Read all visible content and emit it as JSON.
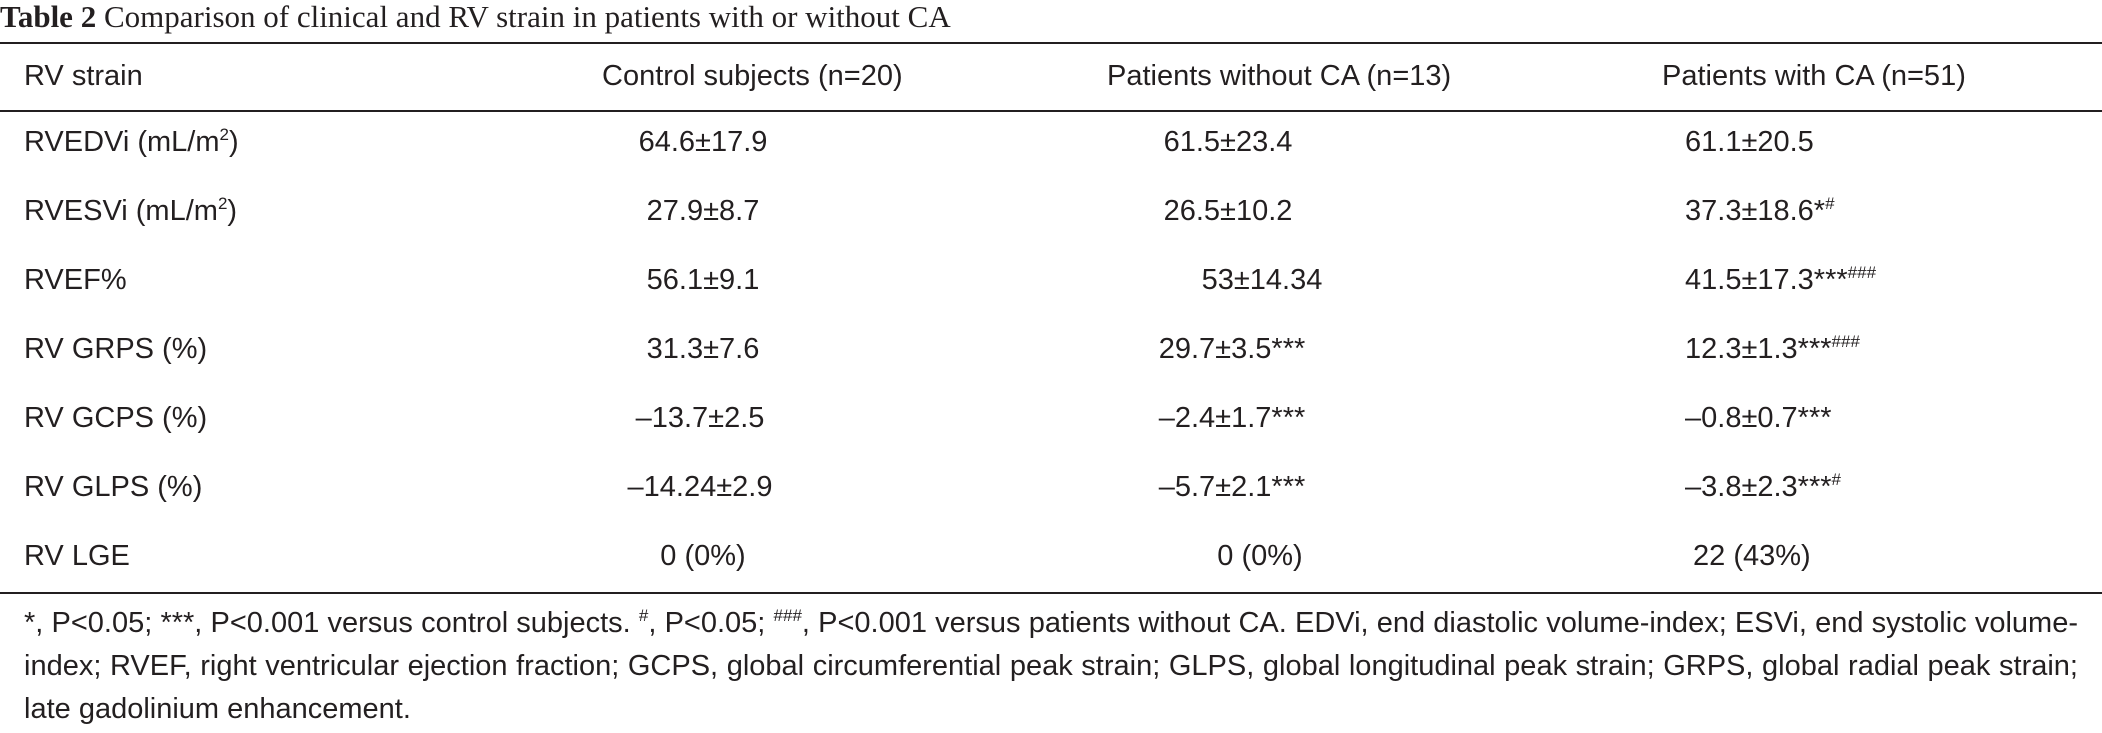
{
  "caption": {
    "label": "Table 2",
    "title": "Comparison of clinical and RV strain in patients with or without CA"
  },
  "table": {
    "headers": [
      "RV strain",
      "Control subjects (n=20)",
      "Patients without CA (n=13)",
      "Patients with CA (n=51)"
    ],
    "rows": [
      {
        "label": "RVEDVi (mL/m",
        "label_sup": "2",
        "label_tail": ")",
        "control": "64.6±17.9",
        "without": "61.5±23.4",
        "with": "61.1±20.5",
        "with_sup": ""
      },
      {
        "label": "RVESVi (mL/m",
        "label_sup": "2",
        "label_tail": ")",
        "control": "27.9±8.7",
        "without": "26.5±10.2",
        "with": "37.3±18.6*",
        "with_sup": "#"
      },
      {
        "label": "RVEF%",
        "label_sup": "",
        "label_tail": "",
        "control": "56.1±9.1",
        "without": "53±14.34",
        "with": "41.5±17.3***",
        "with_sup": "###"
      },
      {
        "label": "RV GRPS (%)",
        "label_sup": "",
        "label_tail": "",
        "control": "31.3±7.6",
        "without": "29.7±3.5***",
        "with": "12.3±1.3***",
        "with_sup": "###"
      },
      {
        "label": "RV GCPS (%)",
        "label_sup": "",
        "label_tail": "",
        "control": "–13.7±2.5",
        "without": "–2.4±1.7***",
        "with": "–0.8±0.7***",
        "with_sup": ""
      },
      {
        "label": "RV GLPS (%)",
        "label_sup": "",
        "label_tail": "",
        "control": "–14.24±2.9",
        "without": "–5.7±2.1***",
        "with": "–3.8±2.3***",
        "with_sup": "#"
      },
      {
        "label": "RV LGE",
        "label_sup": "",
        "label_tail": "",
        "control": "0 (0%)",
        "without": "0 (0%)",
        "with": "22 (43%)",
        "with_sup": ""
      }
    ]
  },
  "footnote": {
    "part1": "*, P<0.05; ***, P<0.001 versus control subjects. ",
    "sup1": "#",
    "part2": ", P<0.05; ",
    "sup2": "###",
    "part3": ", P<0.001 versus patients without CA. EDVi, end diastolic volume-index; ESVi, end systolic volume-index; RVEF, right ventricular ejection fraction; GCPS, global circumferential peak strain; GLPS, global longitudinal peak strain; GRPS, global radial peak strain; late gadolinium enhancement."
  }
}
